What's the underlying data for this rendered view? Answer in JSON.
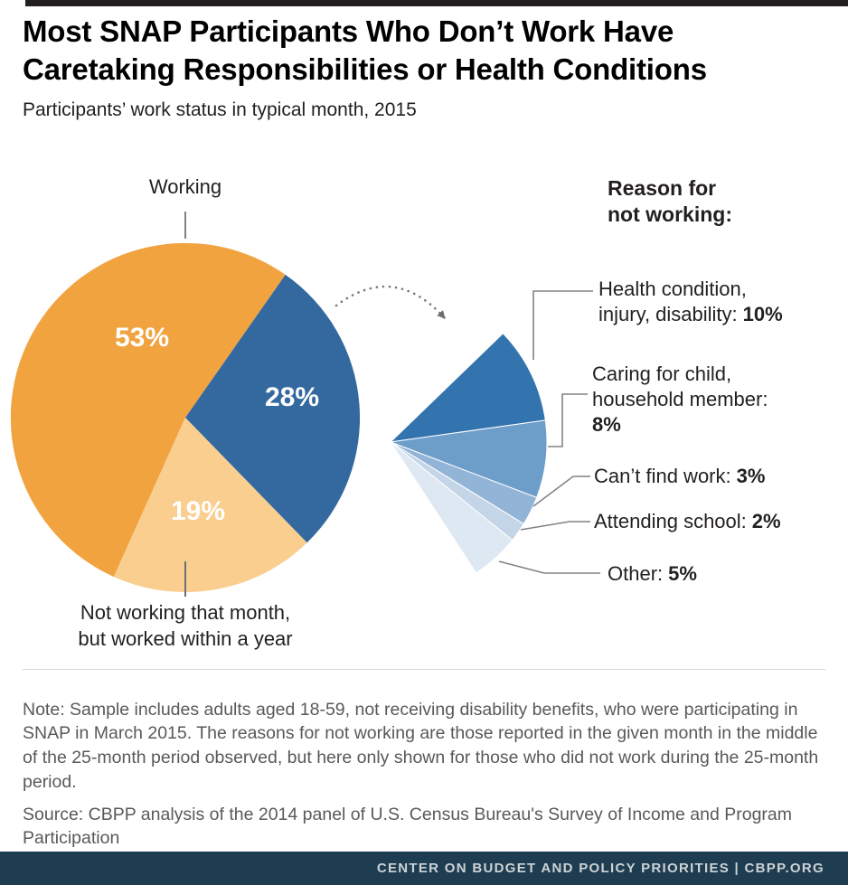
{
  "page": {
    "title_lines": [
      "Most SNAP Participants Who Don’t Work Have",
      "Caretaking Responsibilities or Health Conditions"
    ],
    "subtitle": "Participants’ work status in typical month, 2015",
    "note": "Note: Sample includes adults aged 18-59, not receiving disability benefits, who were participating in SNAP in March 2015. The reasons for not working are those reported in the given month in the middle of the 25-month period observed, but here only shown for those who did not work during the 25-month period.",
    "source": "Source: CBPP analysis of the 2014 panel of U.S. Census Bureau's Survey of Income and Program Participation",
    "footer": "CENTER ON BUDGET AND POLICY PRIORITIES | CBPP.ORG"
  },
  "chart_data": {
    "type": "pie",
    "title": "Most SNAP Participants Who Don’t Work Have Caretaking Responsibilities or Health Conditions",
    "subtitle": "Participants’ work status in typical month, 2015",
    "units": "percent of participants",
    "main_pie": {
      "slices": [
        {
          "label": "Working",
          "value": 53,
          "value_label": "53%",
          "color": "#F1A340"
        },
        {
          "label": "Not working",
          "value": 28,
          "value_label": "28%",
          "color": "#34699F"
        },
        {
          "label": "Not working that month, but worked within a year",
          "value": 19,
          "value_label": "19%",
          "color": "#F9CE8F"
        }
      ],
      "bottom_label_lines": [
        "Not working that month,",
        "but worked within a year"
      ]
    },
    "breakout": {
      "heading_lines": [
        "Reason for",
        "not working:"
      ],
      "slices": [
        {
          "label": "Health condition, injury, disability",
          "value": 10,
          "value_label": "10%",
          "color": "#3474AE",
          "label_lines": [
            "Health condition,",
            "injury, disability:"
          ]
        },
        {
          "label": "Caring for child, household member",
          "value": 8,
          "value_label": "8%",
          "color": "#6D9DC9",
          "label_lines": [
            "Caring for child,",
            "household member:"
          ]
        },
        {
          "label": "Can’t find work",
          "value": 3,
          "value_label": "3%",
          "color": "#92B4D6",
          "label_lines": [
            "Can’t find work:"
          ]
        },
        {
          "label": "Attending school",
          "value": 2,
          "value_label": "2%",
          "color": "#C4D5E7",
          "label_lines": [
            "Attending school:"
          ]
        },
        {
          "label": "Other",
          "value": 5,
          "value_label": "5%",
          "color": "#DEE8F2",
          "label_lines": [
            "Other:"
          ]
        }
      ]
    },
    "colors": {
      "accent_orange": "#F1A340",
      "accent_blue": "#34699F",
      "footer_bar": "#1E3D50",
      "leader_line": "#808285"
    }
  }
}
